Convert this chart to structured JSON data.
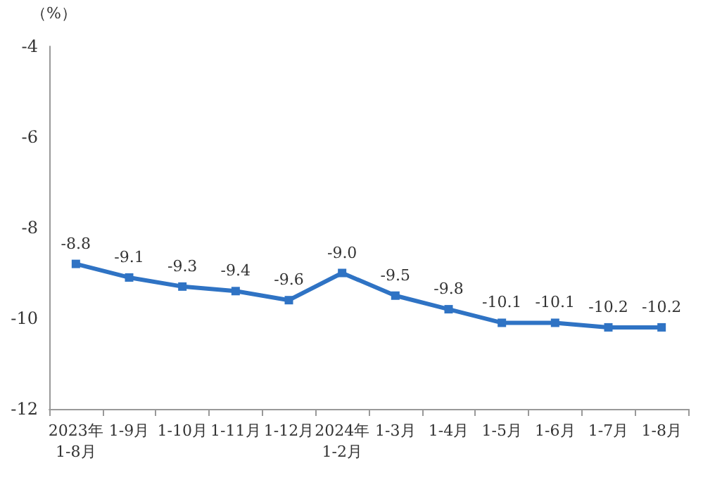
{
  "chart_data": {
    "type": "line",
    "ylabel": "（%）",
    "categories": [
      "2023年\n1-8月",
      "1-9月",
      "1-10月",
      "1-11月",
      "1-12月",
      "2024年\n1-2月",
      "1-3月",
      "1-4月",
      "1-5月",
      "1-6月",
      "1-7月",
      "1-8月"
    ],
    "series": [
      {
        "color": "#2f73c4",
        "values": [
          -8.8,
          -9.1,
          -9.3,
          -9.4,
          -9.6,
          -9.0,
          -9.5,
          -9.8,
          -10.1,
          -10.1,
          -10.2,
          -10.2
        ],
        "value_labels": [
          "-8.8",
          "-9.1",
          "-9.3",
          "-9.4",
          "-9.6",
          "-9.0",
          "-9.5",
          "-9.8",
          "-10.1",
          "-10.1",
          "-10.2",
          "-10.2"
        ]
      }
    ],
    "ylim": [
      -12,
      -4
    ],
    "yticks": [
      -12,
      -10,
      -8,
      -6,
      -4
    ],
    "grid": false,
    "marker": "square",
    "line_style": "solid"
  }
}
